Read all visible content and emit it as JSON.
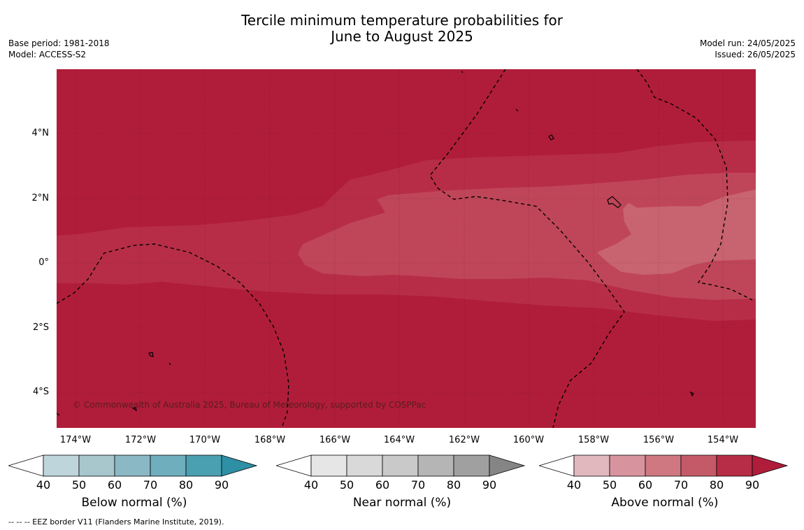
{
  "title_line1": "Tercile minimum temperature probabilities for",
  "title_line2": "June to August 2025",
  "base_period": "Base period: 1981-2018",
  "model": "Model: ACCESS-S2",
  "model_run": "Model run: 24/05/2025",
  "issued": "Issued: 26/05/2025",
  "copyright": "© Commonwealth of Australia 2025, Bureau of Meteorology, supported by COSPPac",
  "footer": "--  --  -- EEZ border V11 (Flanders Marine Institute, 2019).",
  "lat_labels": [
    "4°N",
    "2°N",
    "0°",
    "2°S",
    "4°S"
  ],
  "lon_labels": [
    "174°W",
    "172°W",
    "170°W",
    "168°W",
    "166°W",
    "164°W",
    "162°W",
    "160°W",
    "158°W",
    "156°W",
    "154°W"
  ],
  "colorbars": [
    {
      "title": "Below normal (%)",
      "ticks": [
        "40",
        "50",
        "60",
        "70",
        "80",
        "90"
      ],
      "colors": [
        "#bfd5dc",
        "#a8c7cd",
        "#8bb8c5",
        "#6eaebd",
        "#4a9fb1",
        "#2e8fa5"
      ]
    },
    {
      "title": "Near normal (%)",
      "ticks": [
        "40",
        "50",
        "60",
        "70",
        "80",
        "90"
      ],
      "colors": [
        "#e6e6e6",
        "#d9d9d9",
        "#c9c9c9",
        "#b5b5b5",
        "#a0a0a0",
        "#858585"
      ]
    },
    {
      "title": "Above normal (%)",
      "ticks": [
        "40",
        "50",
        "60",
        "70",
        "80",
        "90"
      ],
      "colors": [
        "#e2b8bf",
        "#d8949e",
        "#cf7881",
        "#c45a67",
        "#b72d47",
        "#b01d3a"
      ]
    }
  ],
  "map_colors": {
    "p90": "#b01d3a",
    "p80": "#b72d47",
    "p70": "#bf4658",
    "p60": "#c8646f"
  }
}
